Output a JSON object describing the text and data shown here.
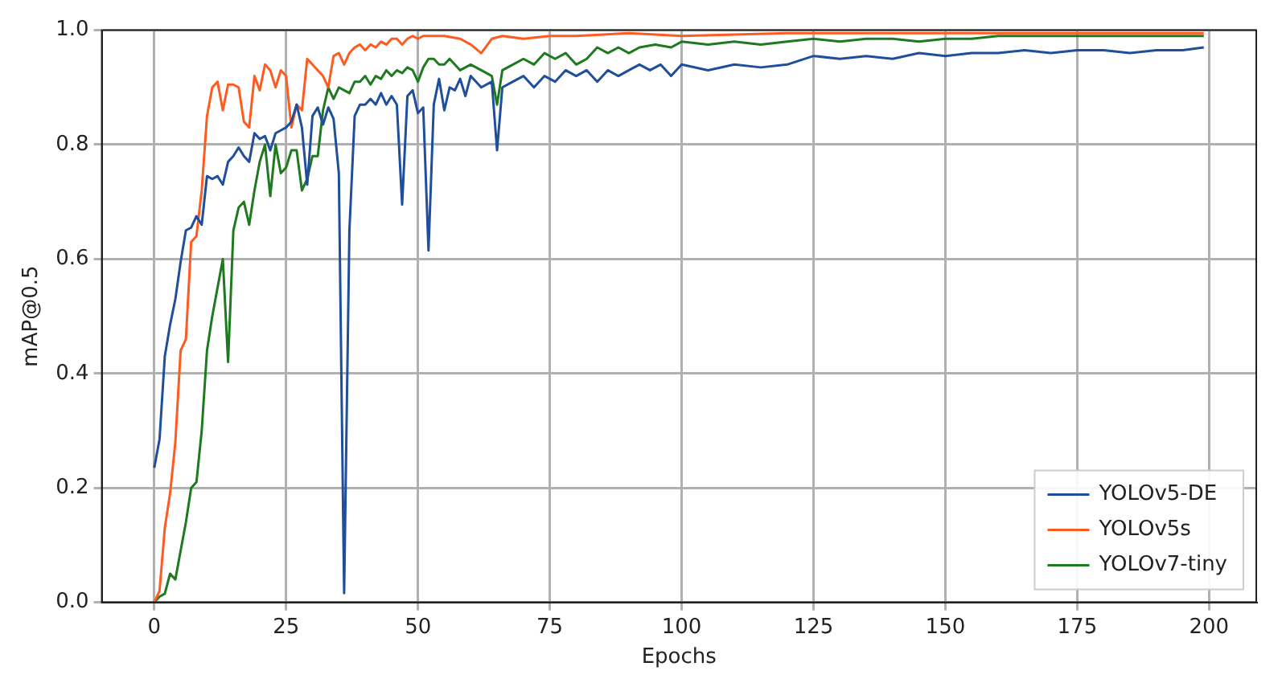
{
  "chart_data": {
    "type": "line",
    "xlabel": "Epochs",
    "ylabel": "mAP@0.5",
    "xlim": [
      -9.95,
      208.95
    ],
    "xticks": [
      0,
      25,
      50,
      75,
      100,
      125,
      150,
      175,
      200
    ],
    "ylim": [
      0,
      1
    ],
    "yticks": [
      {
        "value": 0,
        "label": "0.0"
      },
      0.2,
      0.4,
      0.6,
      0.8,
      {
        "value": 1,
        "label": "1.0"
      }
    ],
    "grid": true,
    "legend": "bottom right",
    "marker": "none",
    "line_style": "solid",
    "series": [
      {
        "name": "YOLOv5-DE",
        "color": "#1f4e9c",
        "x": [
          0,
          1,
          2,
          3,
          4,
          5,
          6,
          7,
          8,
          9,
          10,
          11,
          12,
          13,
          14,
          15,
          16,
          17,
          18,
          19,
          20,
          21,
          22,
          23,
          24,
          25,
          26,
          27,
          28,
          29,
          30,
          31,
          32,
          33,
          34,
          35,
          36,
          37,
          38,
          39,
          40,
          41,
          42,
          43,
          44,
          45,
          46,
          47,
          48,
          49,
          50,
          51,
          52,
          53,
          54,
          55,
          56,
          57,
          58,
          59,
          60,
          62,
          64,
          65,
          66,
          68,
          70,
          72,
          74,
          76,
          78,
          80,
          82,
          84,
          86,
          88,
          90,
          92,
          94,
          96,
          98,
          100,
          105,
          110,
          115,
          120,
          125,
          130,
          135,
          140,
          145,
          150,
          155,
          160,
          165,
          170,
          175,
          180,
          185,
          190,
          195,
          199
        ],
        "values": [
          0.235,
          0.285,
          0.43,
          0.485,
          0.53,
          0.595,
          0.65,
          0.655,
          0.675,
          0.66,
          0.745,
          0.74,
          0.745,
          0.73,
          0.77,
          0.78,
          0.795,
          0.78,
          0.77,
          0.82,
          0.81,
          0.815,
          0.79,
          0.82,
          0.825,
          0.83,
          0.84,
          0.87,
          0.83,
          0.73,
          0.85,
          0.865,
          0.835,
          0.865,
          0.845,
          0.75,
          0.016,
          0.65,
          0.85,
          0.87,
          0.87,
          0.88,
          0.87,
          0.89,
          0.87,
          0.885,
          0.87,
          0.695,
          0.885,
          0.895,
          0.855,
          0.865,
          0.615,
          0.87,
          0.915,
          0.86,
          0.9,
          0.895,
          0.915,
          0.885,
          0.92,
          0.9,
          0.91,
          0.79,
          0.9,
          0.91,
          0.92,
          0.9,
          0.92,
          0.91,
          0.93,
          0.92,
          0.93,
          0.91,
          0.93,
          0.92,
          0.93,
          0.94,
          0.93,
          0.94,
          0.92,
          0.94,
          0.93,
          0.94,
          0.935,
          0.94,
          0.955,
          0.95,
          0.955,
          0.95,
          0.96,
          0.955,
          0.96,
          0.96,
          0.965,
          0.96,
          0.965,
          0.965,
          0.96,
          0.965,
          0.965,
          0.97
        ]
      },
      {
        "name": "YOLOv5s",
        "color": "#ff5a1f",
        "x": [
          0,
          1,
          2,
          3,
          4,
          5,
          6,
          7,
          8,
          9,
          10,
          11,
          12,
          13,
          14,
          15,
          16,
          17,
          18,
          19,
          20,
          21,
          22,
          23,
          24,
          25,
          26,
          27,
          28,
          29,
          30,
          31,
          32,
          33,
          34,
          35,
          36,
          37,
          38,
          39,
          40,
          41,
          42,
          43,
          44,
          45,
          46,
          47,
          48,
          49,
          50,
          51,
          52,
          55,
          58,
          60,
          62,
          64,
          66,
          70,
          75,
          80,
          90,
          100,
          120,
          150,
          175,
          199
        ],
        "values": [
          0.0,
          0.02,
          0.13,
          0.19,
          0.28,
          0.44,
          0.46,
          0.63,
          0.64,
          0.72,
          0.85,
          0.9,
          0.91,
          0.86,
          0.905,
          0.905,
          0.9,
          0.84,
          0.83,
          0.92,
          0.895,
          0.94,
          0.93,
          0.9,
          0.93,
          0.92,
          0.83,
          0.87,
          0.86,
          0.95,
          0.94,
          0.93,
          0.92,
          0.9,
          0.955,
          0.96,
          0.94,
          0.96,
          0.97,
          0.975,
          0.965,
          0.975,
          0.97,
          0.98,
          0.975,
          0.985,
          0.985,
          0.975,
          0.985,
          0.99,
          0.985,
          0.99,
          0.99,
          0.99,
          0.985,
          0.975,
          0.96,
          0.985,
          0.99,
          0.985,
          0.99,
          0.99,
          0.995,
          0.99,
          0.995,
          0.995,
          0.995,
          0.995
        ]
      },
      {
        "name": "YOLOv7-tiny",
        "color": "#1e7a1e",
        "x": [
          0,
          1,
          2,
          3,
          4,
          5,
          6,
          7,
          8,
          9,
          10,
          11,
          12,
          13,
          14,
          15,
          16,
          17,
          18,
          19,
          20,
          21,
          22,
          23,
          24,
          25,
          26,
          27,
          28,
          29,
          30,
          31,
          32,
          33,
          34,
          35,
          36,
          37,
          38,
          39,
          40,
          41,
          42,
          43,
          44,
          45,
          46,
          47,
          48,
          49,
          50,
          51,
          52,
          53,
          54,
          55,
          56,
          58,
          60,
          62,
          64,
          65,
          66,
          68,
          70,
          72,
          74,
          76,
          78,
          80,
          82,
          84,
          86,
          88,
          90,
          92,
          95,
          98,
          100,
          105,
          110,
          115,
          120,
          125,
          130,
          135,
          140,
          145,
          150,
          155,
          160,
          170,
          180,
          190,
          199
        ],
        "values": [
          0.0,
          0.01,
          0.015,
          0.05,
          0.04,
          0.09,
          0.14,
          0.2,
          0.21,
          0.3,
          0.44,
          0.5,
          0.55,
          0.6,
          0.42,
          0.65,
          0.69,
          0.7,
          0.66,
          0.72,
          0.77,
          0.8,
          0.71,
          0.8,
          0.75,
          0.76,
          0.79,
          0.79,
          0.72,
          0.74,
          0.78,
          0.78,
          0.86,
          0.9,
          0.88,
          0.9,
          0.895,
          0.89,
          0.91,
          0.91,
          0.92,
          0.905,
          0.92,
          0.915,
          0.93,
          0.92,
          0.93,
          0.925,
          0.935,
          0.93,
          0.91,
          0.935,
          0.95,
          0.95,
          0.94,
          0.94,
          0.95,
          0.93,
          0.94,
          0.93,
          0.92,
          0.87,
          0.93,
          0.94,
          0.95,
          0.94,
          0.96,
          0.95,
          0.96,
          0.94,
          0.95,
          0.97,
          0.96,
          0.97,
          0.96,
          0.97,
          0.975,
          0.97,
          0.98,
          0.975,
          0.98,
          0.975,
          0.98,
          0.985,
          0.98,
          0.985,
          0.985,
          0.98,
          0.985,
          0.985,
          0.99,
          0.99,
          0.99,
          0.99,
          0.99
        ]
      }
    ]
  }
}
